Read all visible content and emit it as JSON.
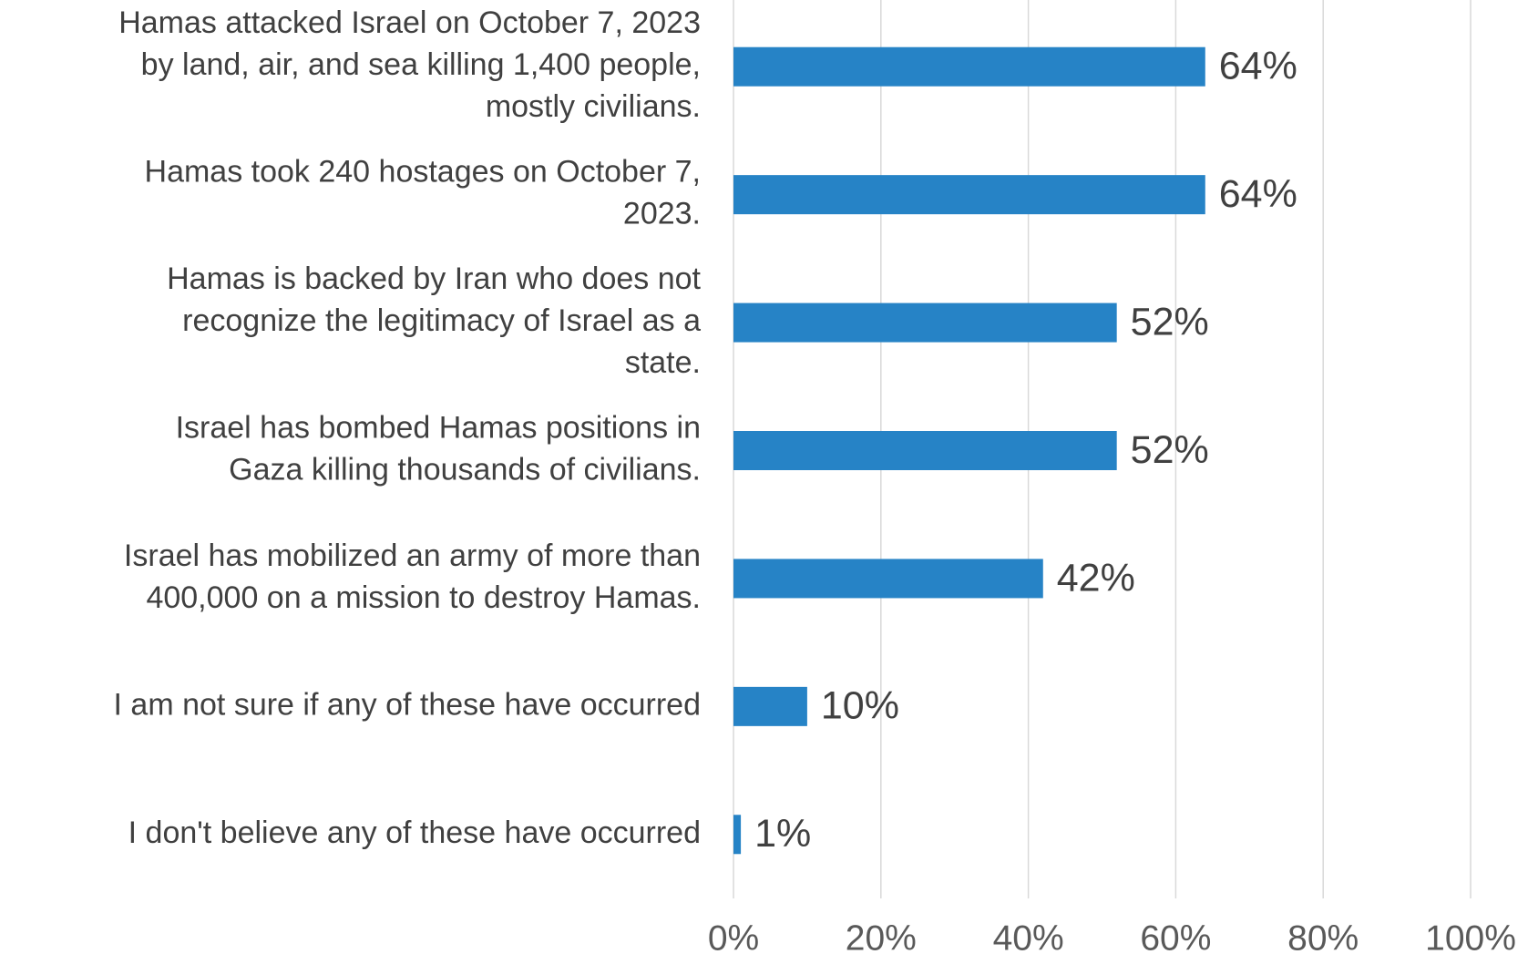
{
  "chart_data": {
    "type": "bar",
    "orientation": "horizontal",
    "categories": [
      "Hamas attacked Israel on October 7, 2023\nby land, air, and sea killing 1,400 people,\nmostly civilians.",
      "Hamas took 240 hostages on October 7,\n2023.",
      "Hamas is backed by Iran who does not\nrecognize the legitimacy of Israel as a\nstate.",
      "Israel has bombed Hamas positions in\nGaza killing thousands of civilians.",
      "Israel has mobilized an army of more than\n400,000 on a mission to destroy Hamas.",
      "I am not sure if any of these have occurred",
      "I don't believe any of these have occurred"
    ],
    "values": [
      64,
      64,
      52,
      52,
      42,
      10,
      1
    ],
    "value_labels": [
      "64%",
      "64%",
      "52%",
      "52%",
      "42%",
      "10%",
      "1%"
    ],
    "color": "#2683c6",
    "xlim": [
      0,
      100
    ],
    "xticks": [
      {
        "value": 0,
        "label": "0%"
      },
      {
        "value": 20,
        "label": "20%"
      },
      {
        "value": 40,
        "label": "40%"
      },
      {
        "value": 60,
        "label": "60%"
      },
      {
        "value": 80,
        "label": "80%"
      },
      {
        "value": 100,
        "label": "100%"
      }
    ],
    "grid": true
  }
}
